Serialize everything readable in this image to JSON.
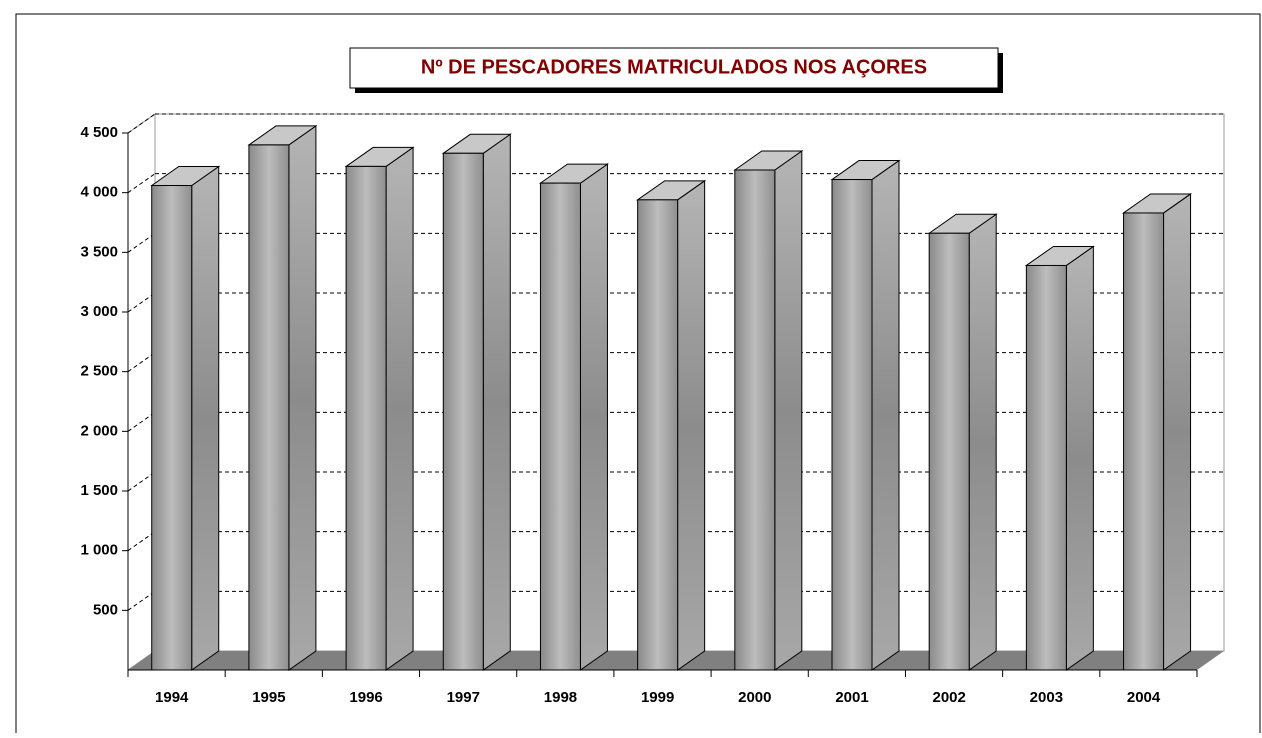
{
  "chart_data": {
    "type": "bar3d",
    "title": "Nº DE PESCADORES MATRICULADOS NOS AÇORES",
    "categories": [
      "1994",
      "1995",
      "1996",
      "1997",
      "1998",
      "1999",
      "2000",
      "2001",
      "2002",
      "2003",
      "2004"
    ],
    "values": [
      4060,
      4400,
      4220,
      4330,
      4080,
      3940,
      4190,
      4110,
      3660,
      3390,
      3830
    ],
    "color": "#a6a6a6",
    "ylim": [
      0,
      4500
    ],
    "yticks": [
      500,
      {
        "value": 1000,
        "label": "1 000"
      },
      {
        "value": 1500,
        "label": "1 500"
      },
      {
        "value": 2000,
        "label": "2 000"
      },
      {
        "value": 2500,
        "label": "2 500"
      },
      {
        "value": 3000,
        "label": "3 000"
      },
      {
        "value": 3500,
        "label": "3 500"
      },
      {
        "value": 4000,
        "label": "4 000"
      },
      {
        "value": 4500,
        "label": "4 500"
      }
    ],
    "grid": true
  }
}
